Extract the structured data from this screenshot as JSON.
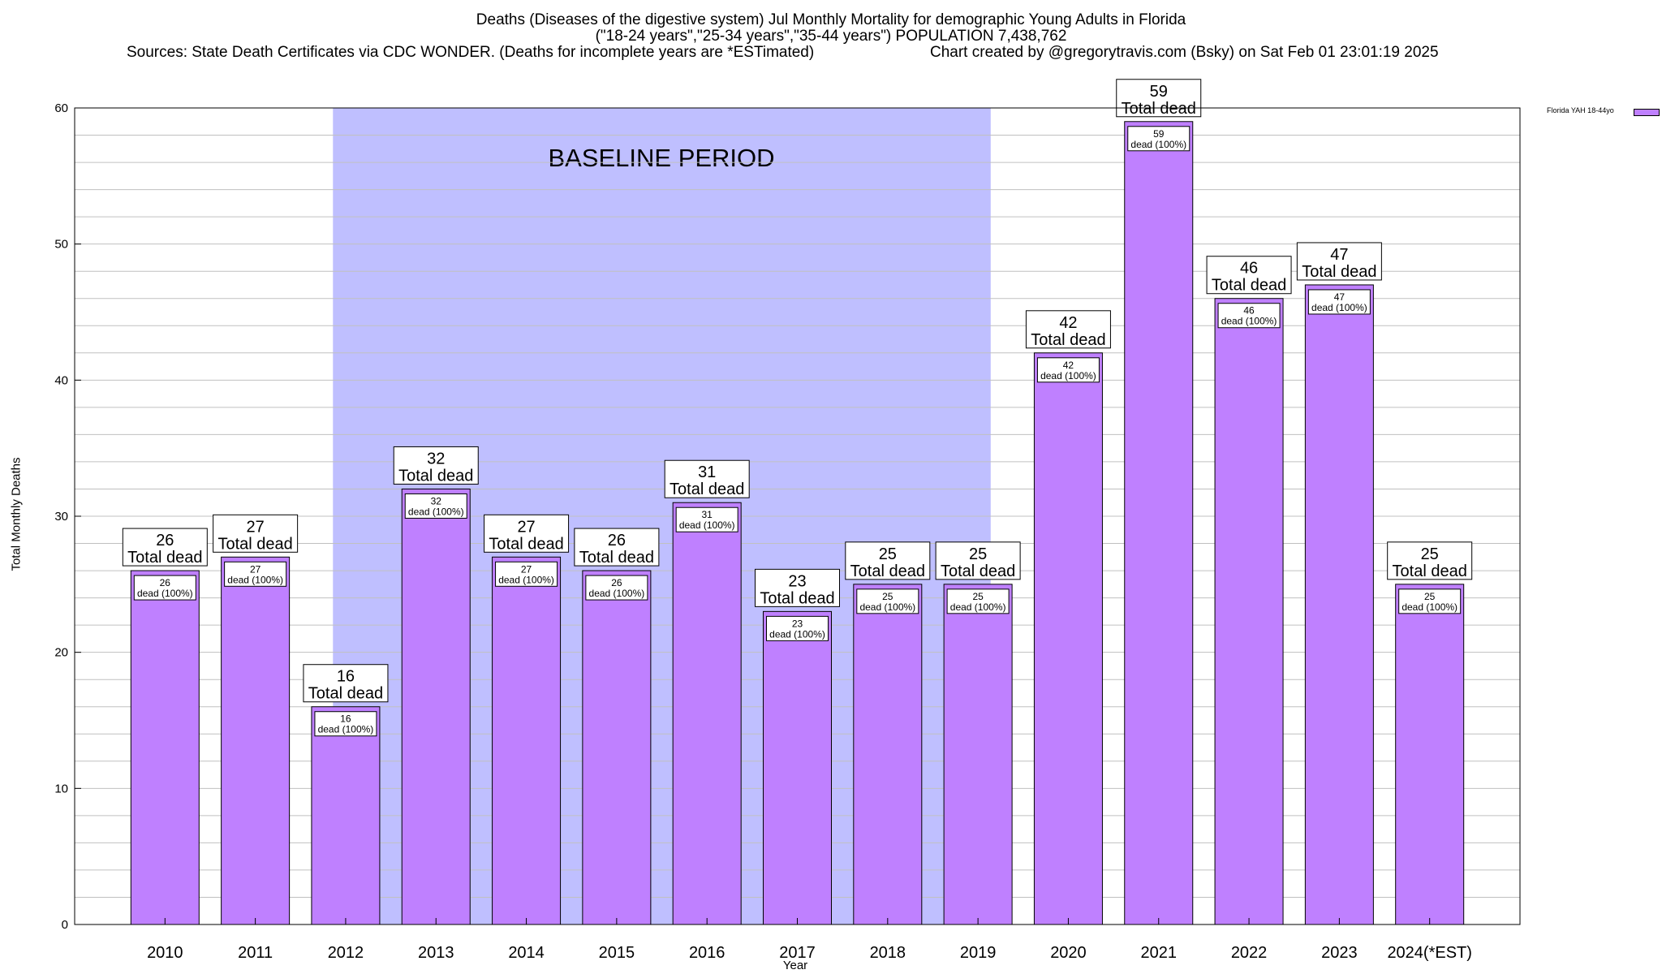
{
  "title": {
    "line1": "Deaths (Diseases of the digestive system) Jul Monthly Mortality for demographic Young Adults in Florida",
    "line2": "(\"18-24 years\",\"25-34 years\",\"35-44 years\") POPULATION 7,438,762",
    "sources": "Sources: State Death Certificates via CDC WONDER. (Deaths for incomplete years are *ESTimated)",
    "credit": "Chart created by @gregorytravis.com (Bsky) on Sat Feb 01 23:01:19 2025"
  },
  "legend": {
    "label": "Florida YAH 18-44yo"
  },
  "colors": {
    "bar": "#bf80ff",
    "baseline": "#bfbfff",
    "grid": "#c0c0c0"
  },
  "chart_data": {
    "type": "bar",
    "title": "Deaths (Diseases of the digestive system) Jul Monthly Mortality for demographic Young Adults in Florida",
    "xlabel": "Year",
    "ylabel": "Total Monthly Deaths",
    "ylim": [
      0,
      60
    ],
    "yticks": [
      0,
      10,
      20,
      30,
      40,
      50,
      60
    ],
    "grid": true,
    "categories": [
      "2010",
      "2011",
      "2012",
      "2013",
      "2014",
      "2015",
      "2016",
      "2017",
      "2018",
      "2019",
      "2020",
      "2021",
      "2022",
      "2023",
      "2024(*EST)"
    ],
    "series": [
      {
        "name": "Florida YAH 18-44yo",
        "values": [
          26,
          27,
          16,
          32,
          27,
          26,
          31,
          23,
          25,
          25,
          42,
          59,
          46,
          47,
          25
        ]
      }
    ],
    "total_label": "Total dead",
    "inner_label": "dead (100%)",
    "baseline": {
      "label": "BASELINE PERIOD",
      "from": "2012",
      "to": "2019"
    }
  }
}
